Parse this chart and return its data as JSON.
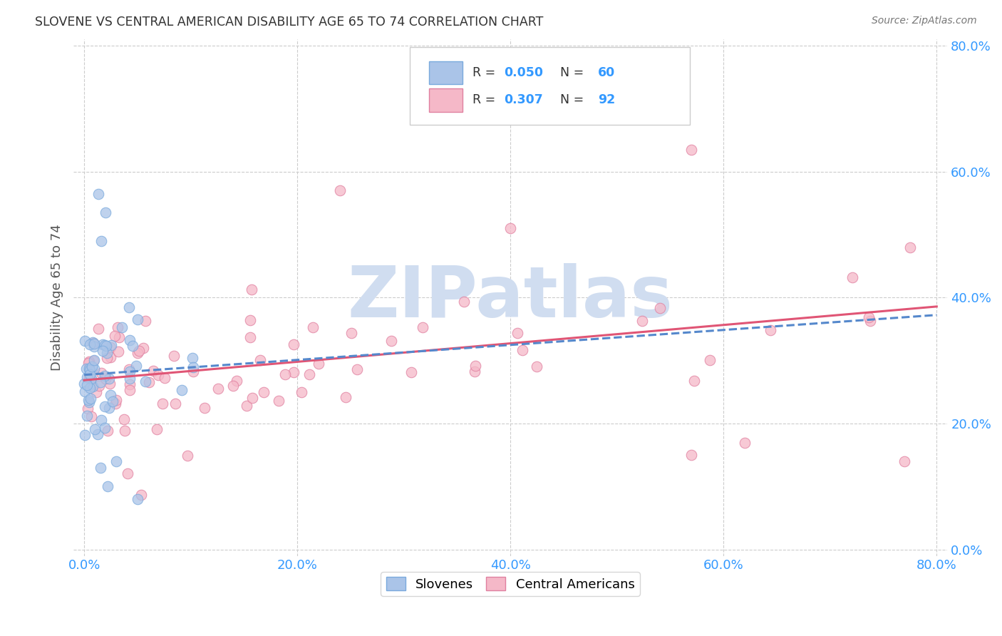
{
  "title": "SLOVENE VS CENTRAL AMERICAN DISABILITY AGE 65 TO 74 CORRELATION CHART",
  "source": "Source: ZipAtlas.com",
  "ylabel": "Disability Age 65 to 74",
  "slovene_color": "#aac4e8",
  "slovene_edge_color": "#7aaadd",
  "central_american_color": "#f5b8c8",
  "central_american_edge_color": "#e080a0",
  "slovene_line_color": "#5588cc",
  "central_american_line_color": "#e05575",
  "watermark_color": "#d0ddf0",
  "watermark_text": "ZIPatlas",
  "legend_r1": "R = 0.050",
  "legend_n1": "N = 60",
  "legend_r2": "R = 0.307",
  "legend_n2": "N = 92",
  "legend_color_text": "#3399ff",
  "tick_color": "#3399ff",
  "title_color": "#333333",
  "source_color": "#777777",
  "grid_color": "#cccccc",
  "ylabel_color": "#555555"
}
